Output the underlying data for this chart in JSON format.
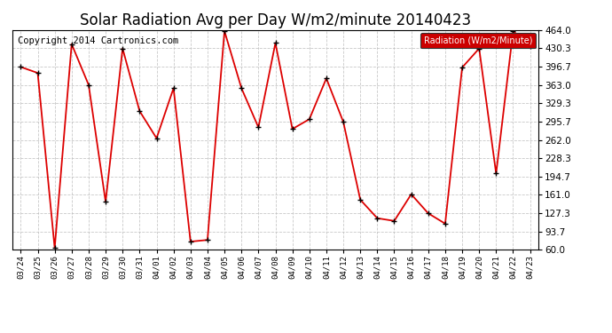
{
  "title": "Solar Radiation Avg per Day W/m2/minute 20140423",
  "copyright": "Copyright 2014 Cartronics.com",
  "legend_label": "Radiation (W/m2/Minute)",
  "dates": [
    "03/24",
    "03/25",
    "03/26",
    "03/27",
    "03/28",
    "03/29",
    "03/30",
    "03/31",
    "04/01",
    "04/02",
    "04/03",
    "04/04",
    "04/05",
    "04/06",
    "04/07",
    "04/08",
    "04/09",
    "04/10",
    "04/11",
    "04/12",
    "04/13",
    "04/14",
    "04/15",
    "04/16",
    "04/17",
    "04/18",
    "04/19",
    "04/20",
    "04/21",
    "04/22",
    "04/23"
  ],
  "values": [
    396,
    385,
    63,
    438,
    363,
    148,
    430,
    315,
    265,
    357,
    75,
    78,
    462,
    357,
    285,
    440,
    282,
    300,
    375,
    295,
    152,
    118,
    113,
    162,
    127,
    108,
    395,
    430,
    200,
    462,
    435
  ],
  "line_color": "#dd0000",
  "marker_color": "#000000",
  "background_color": "#ffffff",
  "plot_bg_color": "#ffffff",
  "grid_color": "#bbbbbb",
  "ylim": [
    60.0,
    464.0
  ],
  "yticks": [
    60.0,
    93.7,
    127.3,
    161.0,
    194.7,
    228.3,
    262.0,
    295.7,
    329.3,
    363.0,
    396.7,
    430.3,
    464.0
  ],
  "title_fontsize": 12,
  "copyright_fontsize": 7.5,
  "legend_bg_color": "#cc0000",
  "legend_text_color": "#ffffff"
}
